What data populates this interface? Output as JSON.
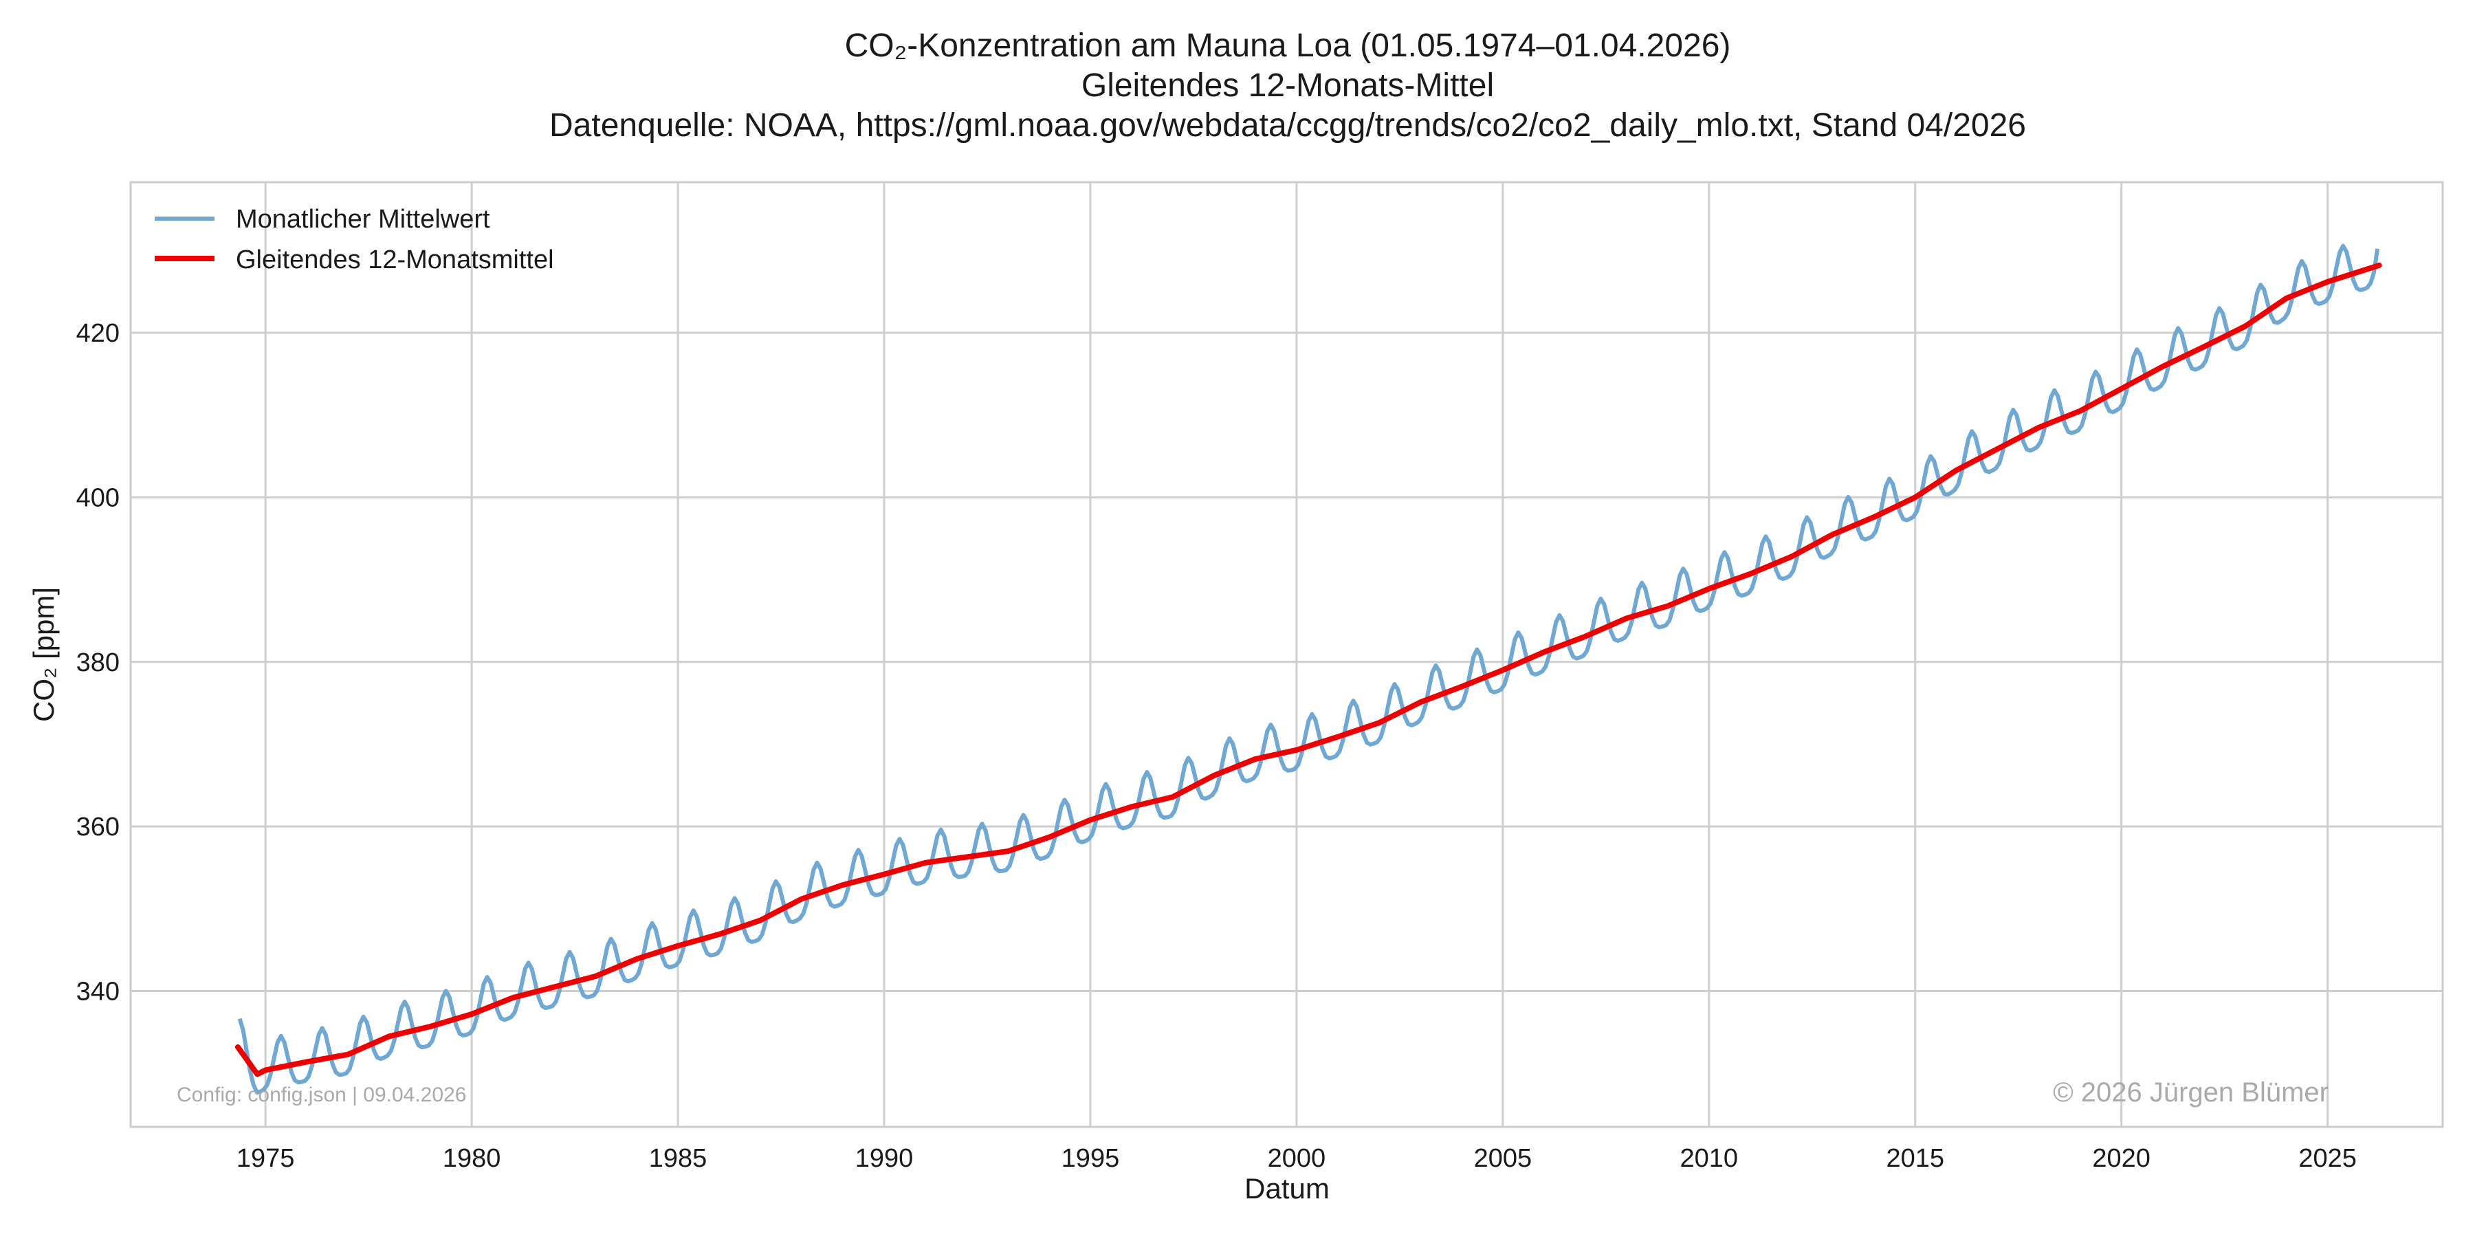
{
  "chart_data": {
    "type": "line",
    "title_lines": [
      "CO₂-Konzentration am Mauna Loa (01.05.1974–01.04.2026)",
      "Gleitendes 12-Monats-Mittel",
      "Datenquelle: NOAA, https://gml.noaa.gov/webdata/ccgg/trends/co2/co2_daily_mlo.txt, Stand 04/2026"
    ],
    "xlabel": "Datum",
    "ylabel": "CO₂ [ppm]",
    "xlim": [
      1971.73,
      2027.79
    ],
    "ylim": [
      323.5,
      438.3
    ],
    "xticks": [
      1975,
      1980,
      1985,
      1990,
      1995,
      2000,
      2005,
      2010,
      2015,
      2020,
      2025
    ],
    "xtick_labels": [
      "1975",
      "1980",
      "1985",
      "1990",
      "1995",
      "2000",
      "2005",
      "2010",
      "2015",
      "2020",
      "2025"
    ],
    "yticks": [
      340,
      360,
      380,
      400,
      420
    ],
    "ytick_labels": [
      "340",
      "360",
      "380",
      "400",
      "420"
    ],
    "grid": true,
    "legend_position": "top-left",
    "series": [
      {
        "name": "Monatlicher Mittelwert",
        "color": "#6fa8d2",
        "x_start": "1974-05",
        "x_end": "2026-03",
        "seasonal_amplitude_ppm": 3.3,
        "note_values_are_monthly_trend_plus_seasonal_cycle": true
      },
      {
        "name": "Gleitendes 12-Monatsmittel",
        "color": "#ee0000",
        "x": [
          1974.33,
          1974.8,
          1975,
          1976,
          1977,
          1978,
          1979,
          1980,
          1981,
          1982,
          1983,
          1984,
          1985,
          1986,
          1987,
          1988,
          1989,
          1990,
          1991,
          1992,
          1993,
          1994,
          1995,
          1996,
          1997,
          1998,
          1999,
          2000,
          2001,
          2002,
          2003,
          2004,
          2005,
          2006,
          2007,
          2008,
          2009,
          2010,
          2011,
          2012,
          2013,
          2014,
          2015,
          2016,
          2017,
          2018,
          2019,
          2020,
          2021,
          2022,
          2023,
          2024,
          2025,
          2026.25
        ],
        "values": [
          333.2,
          329.9,
          330.4,
          331.4,
          332.3,
          334.5,
          335.7,
          337.2,
          339.2,
          340.5,
          341.8,
          343.9,
          345.5,
          346.9,
          348.6,
          351.2,
          352.9,
          354.2,
          355.6,
          356.3,
          357.0,
          358.7,
          360.8,
          362.4,
          363.6,
          366.2,
          368.2,
          369.3,
          370.9,
          372.6,
          375.1,
          377.0,
          379.0,
          381.2,
          383.1,
          385.3,
          386.8,
          388.9,
          390.7,
          392.8,
          395.5,
          397.6,
          400.0,
          403.3,
          405.9,
          408.5,
          410.5,
          413.2,
          415.9,
          418.3,
          420.8,
          424.2,
          426.2,
          428.2
        ]
      }
    ],
    "annotations": {
      "config_note": "Config: config.json | 09.04.2026",
      "copyright": "© 2026 Jürgen Blümer"
    }
  },
  "colors": {
    "grid": "#cfcfcf",
    "frame": "#cccccc",
    "text": "#1a1a1a",
    "annotation": "#aaaaaa"
  }
}
